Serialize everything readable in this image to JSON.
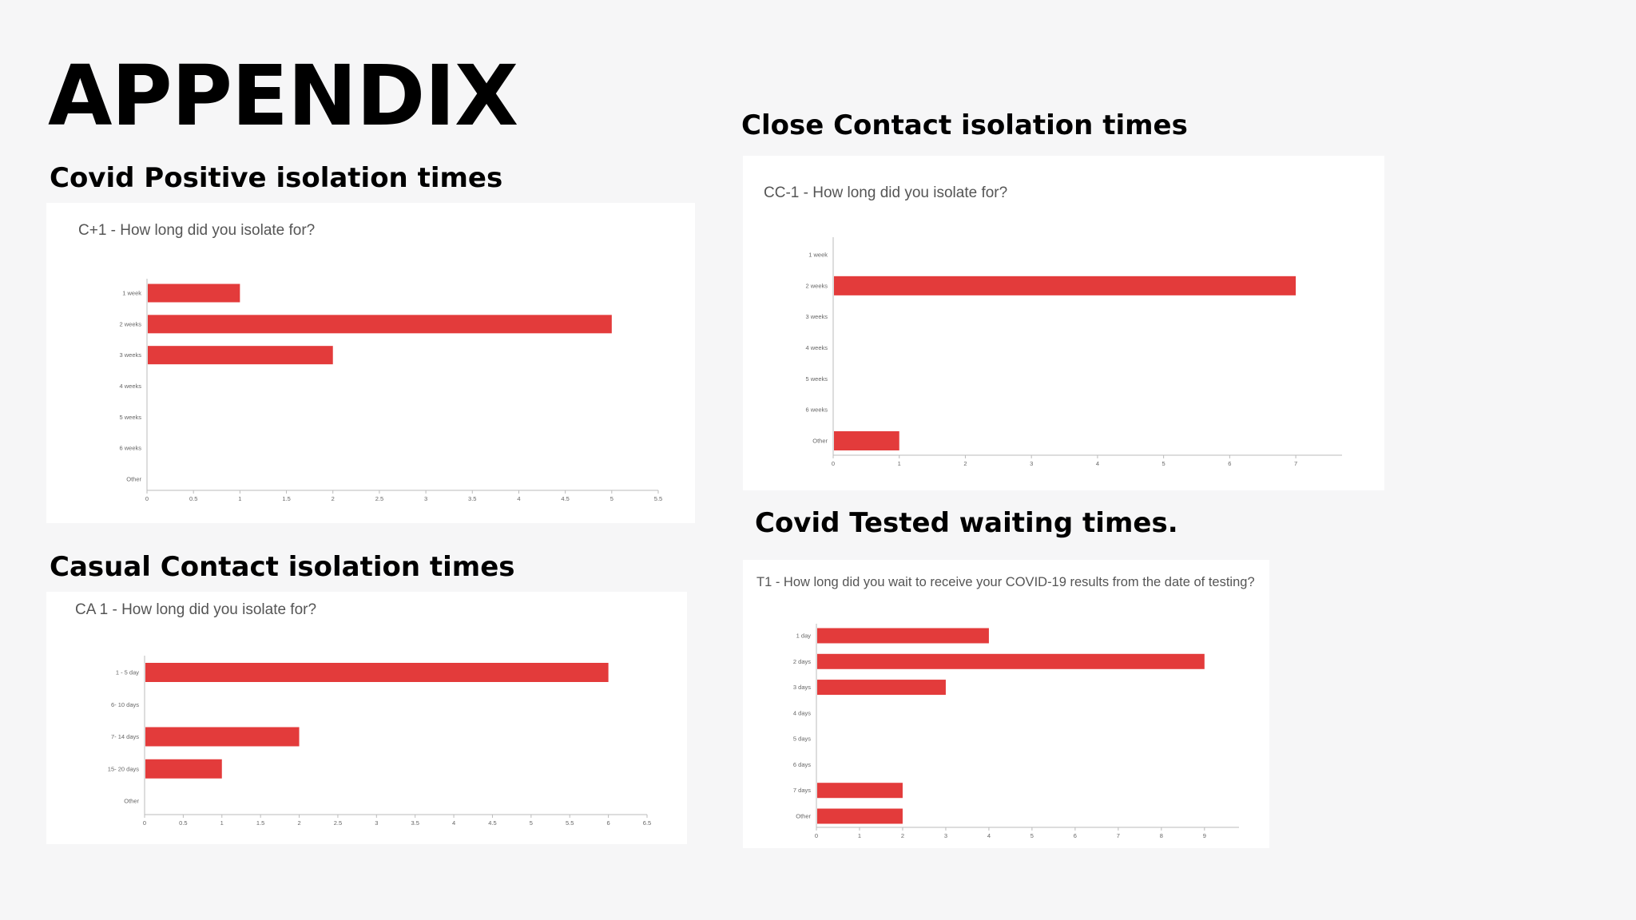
{
  "page": {
    "title": "APPENDIX",
    "bar_color": "#e33b3b"
  },
  "sections": {
    "positive": "Covid Positive isolation times",
    "close": "Close Contact isolation times",
    "casual": "Casual Contact isolation times",
    "tested": "Covid Tested waiting times."
  },
  "chart_data": [
    {
      "id": "positive",
      "type": "bar",
      "orientation": "horizontal",
      "title": "C+1 - How long did you isolate for?",
      "categories": [
        "1 week",
        "2 weeks",
        "3 weeks",
        "4 weeks",
        "5 weeks",
        "6 weeks",
        "Other"
      ],
      "values": [
        1,
        5,
        2,
        0,
        0,
        0,
        0
      ],
      "xlim": [
        0,
        5.5
      ],
      "xticks": [
        "0",
        "0.5",
        "1",
        "1.5",
        "2",
        "2.5",
        "3",
        "3.5",
        "4",
        "4.5",
        "5",
        "5.5"
      ],
      "grid": false
    },
    {
      "id": "close",
      "type": "bar",
      "orientation": "horizontal",
      "title": "CC-1 - How long did you isolate for?",
      "categories": [
        "1 week",
        "2 weeks",
        "3 weeks",
        "4 weeks",
        "5 weeks",
        "6 weeks",
        "Other"
      ],
      "values": [
        0,
        7,
        0,
        0,
        0,
        0,
        1
      ],
      "xlim": [
        0,
        7.7
      ],
      "xticks": [
        "0",
        "1",
        "2",
        "3",
        "4",
        "5",
        "6",
        "7"
      ],
      "grid": false
    },
    {
      "id": "casual",
      "type": "bar",
      "orientation": "horizontal",
      "title": "CA 1 - How long did you isolate for?",
      "categories": [
        "1 - 5 day",
        "6- 10 days",
        "7- 14 days",
        "15- 20 days",
        "Other"
      ],
      "values": [
        6,
        0,
        2,
        1,
        0
      ],
      "xlim": [
        0,
        6.5
      ],
      "xticks": [
        "0",
        "0.5",
        "1",
        "1.5",
        "2",
        "2.5",
        "3",
        "3.5",
        "4",
        "4.5",
        "5",
        "5.5",
        "6",
        "6.5"
      ],
      "grid": false
    },
    {
      "id": "tested",
      "type": "bar",
      "orientation": "horizontal",
      "title": "T1 - How long did you wait to receive your COVID-19 results from the date of testing?",
      "categories": [
        "1 day",
        "2 days",
        "3 days",
        "4 days",
        "5 days",
        "6 days",
        "7 days",
        "Other"
      ],
      "values": [
        4,
        9,
        3,
        0,
        0,
        0,
        2,
        2
      ],
      "xlim": [
        0,
        9.8
      ],
      "xticks": [
        "0",
        "1",
        "2",
        "3",
        "4",
        "5",
        "6",
        "7",
        "8",
        "9"
      ],
      "grid": false
    }
  ]
}
